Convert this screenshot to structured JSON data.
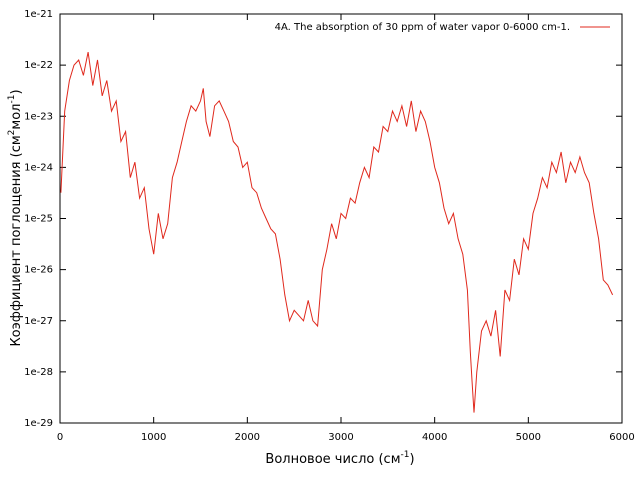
{
  "chart_data": {
    "type": "line",
    "xlabel": [
      "Волновое число (см",
      "-1",
      ")"
    ],
    "ylabel": [
      "Коэффициент поглощения (см",
      "2",
      "мол",
      "-1",
      ")"
    ],
    "xlim": [
      0,
      6000
    ],
    "xticks": [
      0,
      1000,
      2000,
      3000,
      4000,
      5000,
      6000
    ],
    "ylim": [
      1e-29,
      1e-21
    ],
    "yticks": [
      1e-29,
      1e-28,
      1e-27,
      1e-26,
      1e-25,
      1e-24,
      1e-23,
      1e-22,
      1e-21
    ],
    "ylog": true,
    "legend": "top-right",
    "series": [
      {
        "name": "4A. The absorption of 30 ppm of water vapor  0-6000 cm-1.",
        "color": "#e0281c",
        "x": [
          10,
          50,
          100,
          150,
          200,
          250,
          300,
          350,
          400,
          450,
          500,
          550,
          600,
          650,
          700,
          750,
          800,
          850,
          900,
          950,
          1000,
          1050,
          1100,
          1150,
          1200,
          1250,
          1300,
          1350,
          1400,
          1450,
          1500,
          1530,
          1560,
          1600,
          1650,
          1700,
          1750,
          1800,
          1850,
          1900,
          1950,
          2000,
          2050,
          2100,
          2150,
          2200,
          2250,
          2300,
          2350,
          2400,
          2450,
          2500,
          2550,
          2600,
          2650,
          2700,
          2750,
          2800,
          2850,
          2900,
          2950,
          3000,
          3050,
          3100,
          3150,
          3200,
          3250,
          3300,
          3350,
          3400,
          3450,
          3500,
          3550,
          3600,
          3650,
          3700,
          3750,
          3800,
          3850,
          3900,
          3950,
          4000,
          4050,
          4100,
          4150,
          4200,
          4250,
          4300,
          4350,
          4380,
          4400,
          4420,
          4450,
          4500,
          4550,
          4600,
          4650,
          4700,
          4750,
          4800,
          4850,
          4900,
          4950,
          5000,
          5050,
          5100,
          5150,
          5200,
          5250,
          5300,
          5350,
          5400,
          5450,
          5500,
          5550,
          5600,
          5650,
          5700,
          5750,
          5800,
          5850,
          5900
        ],
        "values": [
          3.2e-25,
          1.26e-23,
          5e-23,
          1e-22,
          1.26e-22,
          6.3e-23,
          1.8e-22,
          4e-23,
          1.26e-22,
          2.5e-23,
          5e-23,
          1.26e-23,
          2e-23,
          3.2e-24,
          5e-24,
          6.3e-25,
          1.26e-24,
          2.5e-25,
          4e-25,
          6.3e-26,
          2e-26,
          1.26e-25,
          4e-26,
          7.9e-26,
          6.3e-25,
          1.26e-24,
          3.2e-24,
          7.9e-24,
          1.6e-23,
          1.26e-23,
          2e-23,
          3.5e-23,
          7.9e-24,
          4e-24,
          1.6e-23,
          2e-23,
          1.26e-23,
          7.9e-24,
          3.2e-24,
          2.5e-24,
          1e-24,
          1.26e-24,
          4e-25,
          3.2e-25,
          1.6e-25,
          1e-25,
          6.3e-26,
          5e-26,
          1.6e-26,
          3.2e-27,
          1e-27,
          1.6e-27,
          1.26e-27,
          1e-27,
          2.5e-27,
          1e-27,
          7.9e-28,
          1e-26,
          2.5e-26,
          7.9e-26,
          4e-26,
          1.26e-25,
          1e-25,
          2.5e-25,
          2e-25,
          5e-25,
          1e-24,
          6.3e-25,
          2.5e-24,
          2e-24,
          6.3e-24,
          5e-24,
          1.26e-23,
          7.9e-24,
          1.6e-23,
          6.3e-24,
          2e-23,
          5e-24,
          1.26e-23,
          7.9e-24,
          3.2e-24,
          1e-24,
          5e-25,
          1.6e-25,
          7.9e-26,
          1.26e-25,
          4e-26,
          2e-26,
          4e-27,
          2.5e-28,
          6.3e-29,
          1.6e-29,
          1e-28,
          6.3e-28,
          1e-27,
          5e-28,
          1.6e-27,
          2e-28,
          4e-27,
          2.5e-27,
          1.6e-26,
          7.9e-27,
          4e-26,
          2.5e-26,
          1.26e-25,
          2.5e-25,
          6.3e-25,
          4e-25,
          1.26e-24,
          7.9e-25,
          2e-24,
          5e-25,
          1.26e-24,
          7.9e-25,
          1.6e-24,
          7.9e-25,
          5e-25,
          1.26e-25,
          4e-26,
          6.3e-27,
          5e-27,
          3.2e-27
        ]
      }
    ]
  }
}
